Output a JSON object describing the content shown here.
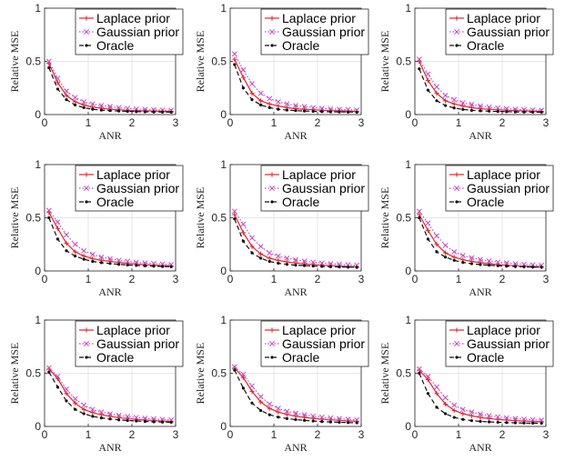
{
  "colors": {
    "laplace": "#e8202a",
    "gaussian": "#c44dc4",
    "oracle": "#111111",
    "grid": "#dedede",
    "axis": "#262626"
  },
  "chart_data": [
    {
      "type": "line",
      "title": "",
      "xlabel": "ANR",
      "ylabel": "Relative MSE",
      "xlim": [
        0,
        3
      ],
      "ylim": [
        0,
        1
      ],
      "grid": true,
      "legend_position": "top-right",
      "xticks": [
        "0",
        "1",
        "2",
        "3"
      ],
      "yticks": [
        "0",
        "0.5",
        "1"
      ],
      "x": [
        0.1,
        0.3,
        0.5,
        0.7,
        0.9,
        1.1,
        1.3,
        1.5,
        1.7,
        1.9,
        2.1,
        2.3,
        2.5,
        2.7,
        2.9
      ],
      "series": [
        {
          "name": "Laplace prior",
          "color_key": "laplace",
          "style": "solid",
          "marker": "+",
          "values": [
            0.48,
            0.3,
            0.18,
            0.12,
            0.09,
            0.07,
            0.06,
            0.05,
            0.045,
            0.04,
            0.037,
            0.035,
            0.033,
            0.031,
            0.03
          ]
        },
        {
          "name": "Gaussian prior",
          "color_key": "gaussian",
          "style": "dotted",
          "marker": "x",
          "values": [
            0.5,
            0.34,
            0.22,
            0.16,
            0.12,
            0.1,
            0.085,
            0.075,
            0.065,
            0.058,
            0.052,
            0.048,
            0.045,
            0.042,
            0.04
          ]
        },
        {
          "name": "Oracle",
          "color_key": "oracle",
          "style": "dashed",
          "marker": "dot",
          "values": [
            0.44,
            0.24,
            0.14,
            0.09,
            0.065,
            0.05,
            0.042,
            0.037,
            0.033,
            0.03,
            0.028,
            0.026,
            0.025,
            0.024,
            0.023
          ]
        }
      ]
    },
    {
      "type": "line",
      "title": "",
      "xlabel": "ANR",
      "ylabel": "Relative MSE",
      "xlim": [
        0,
        3
      ],
      "ylim": [
        0,
        1
      ],
      "grid": true,
      "legend_position": "top-right",
      "xticks": [
        "0",
        "1",
        "2",
        "3"
      ],
      "yticks": [
        "0",
        "0.5",
        "1"
      ],
      "x": [
        0.1,
        0.3,
        0.5,
        0.7,
        0.9,
        1.1,
        1.3,
        1.5,
        1.7,
        1.9,
        2.1,
        2.3,
        2.5,
        2.7,
        2.9
      ],
      "series": [
        {
          "name": "Laplace prior",
          "color_key": "laplace",
          "style": "solid",
          "marker": "+",
          "values": [
            0.52,
            0.35,
            0.2,
            0.13,
            0.1,
            0.08,
            0.065,
            0.055,
            0.05,
            0.045,
            0.04,
            0.037,
            0.035,
            0.033,
            0.03
          ]
        },
        {
          "name": "Gaussian prior",
          "color_key": "gaussian",
          "style": "dotted",
          "marker": "x",
          "values": [
            0.57,
            0.42,
            0.29,
            0.2,
            0.15,
            0.12,
            0.1,
            0.085,
            0.075,
            0.065,
            0.058,
            0.052,
            0.048,
            0.045,
            0.042
          ]
        },
        {
          "name": "Oracle",
          "color_key": "oracle",
          "style": "dashed",
          "marker": "dot",
          "values": [
            0.47,
            0.25,
            0.14,
            0.09,
            0.065,
            0.05,
            0.042,
            0.037,
            0.033,
            0.03,
            0.028,
            0.026,
            0.025,
            0.024,
            0.022
          ]
        }
      ]
    },
    {
      "type": "line",
      "title": "",
      "xlabel": "ANR",
      "ylabel": "Relative MSE",
      "xlim": [
        0,
        3
      ],
      "ylim": [
        0,
        1
      ],
      "grid": true,
      "legend_position": "top-right",
      "xticks": [
        "0",
        "1",
        "2",
        "3"
      ],
      "yticks": [
        "0",
        "0.5",
        "1"
      ],
      "x": [
        0.1,
        0.3,
        0.5,
        0.7,
        0.9,
        1.1,
        1.3,
        1.5,
        1.7,
        1.9,
        2.1,
        2.3,
        2.5,
        2.7,
        2.9
      ],
      "series": [
        {
          "name": "Laplace prior",
          "color_key": "laplace",
          "style": "solid",
          "marker": "+",
          "values": [
            0.5,
            0.32,
            0.2,
            0.13,
            0.1,
            0.08,
            0.065,
            0.055,
            0.05,
            0.045,
            0.04,
            0.037,
            0.035,
            0.032,
            0.03
          ]
        },
        {
          "name": "Gaussian prior",
          "color_key": "gaussian",
          "style": "dotted",
          "marker": "x",
          "values": [
            0.52,
            0.38,
            0.26,
            0.18,
            0.14,
            0.11,
            0.095,
            0.08,
            0.07,
            0.062,
            0.055,
            0.05,
            0.046,
            0.043,
            0.04
          ]
        },
        {
          "name": "Oracle",
          "color_key": "oracle",
          "style": "dashed",
          "marker": "dot",
          "values": [
            0.43,
            0.23,
            0.13,
            0.085,
            0.062,
            0.048,
            0.04,
            0.035,
            0.032,
            0.029,
            0.027,
            0.025,
            0.024,
            0.023,
            0.022
          ]
        }
      ]
    },
    {
      "type": "line",
      "title": "",
      "xlabel": "ANR",
      "ylabel": "Relative MSE",
      "xlim": [
        0,
        3
      ],
      "ylim": [
        0,
        1
      ],
      "grid": true,
      "legend_position": "top-right",
      "xticks": [
        "0",
        "1",
        "2",
        "3"
      ],
      "yticks": [
        "0",
        "0.5",
        "1"
      ],
      "x": [
        0.1,
        0.3,
        0.5,
        0.7,
        0.9,
        1.1,
        1.3,
        1.5,
        1.7,
        1.9,
        2.1,
        2.3,
        2.5,
        2.7,
        2.9
      ],
      "series": [
        {
          "name": "Laplace prior",
          "color_key": "laplace",
          "style": "solid",
          "marker": "+",
          "values": [
            0.55,
            0.4,
            0.26,
            0.18,
            0.14,
            0.115,
            0.1,
            0.09,
            0.08,
            0.072,
            0.065,
            0.06,
            0.055,
            0.05,
            0.047
          ]
        },
        {
          "name": "Gaussian prior",
          "color_key": "gaussian",
          "style": "dotted",
          "marker": "x",
          "values": [
            0.57,
            0.46,
            0.34,
            0.25,
            0.19,
            0.155,
            0.13,
            0.115,
            0.1,
            0.09,
            0.082,
            0.075,
            0.07,
            0.065,
            0.06
          ]
        },
        {
          "name": "Oracle",
          "color_key": "oracle",
          "style": "dashed",
          "marker": "dot",
          "values": [
            0.5,
            0.3,
            0.19,
            0.14,
            0.11,
            0.09,
            0.078,
            0.07,
            0.062,
            0.056,
            0.052,
            0.048,
            0.045,
            0.042,
            0.04
          ]
        }
      ]
    },
    {
      "type": "line",
      "title": "",
      "xlabel": "ANR",
      "ylabel": "Relative MSE",
      "xlim": [
        0,
        3
      ],
      "ylim": [
        0,
        1
      ],
      "grid": true,
      "legend_position": "top-right",
      "xticks": [
        "0",
        "1",
        "2",
        "3"
      ],
      "yticks": [
        "0",
        "0.5",
        "1"
      ],
      "x": [
        0.1,
        0.3,
        0.5,
        0.7,
        0.9,
        1.1,
        1.3,
        1.5,
        1.7,
        1.9,
        2.1,
        2.3,
        2.5,
        2.7,
        2.9
      ],
      "series": [
        {
          "name": "Laplace prior",
          "color_key": "laplace",
          "style": "solid",
          "marker": "+",
          "values": [
            0.53,
            0.36,
            0.23,
            0.16,
            0.12,
            0.1,
            0.085,
            0.075,
            0.066,
            0.06,
            0.054,
            0.05,
            0.046,
            0.043,
            0.04
          ]
        },
        {
          "name": "Gaussian prior",
          "color_key": "gaussian",
          "style": "dotted",
          "marker": "x",
          "values": [
            0.56,
            0.44,
            0.31,
            0.23,
            0.17,
            0.14,
            0.12,
            0.105,
            0.092,
            0.082,
            0.074,
            0.068,
            0.062,
            0.058,
            0.054
          ]
        },
        {
          "name": "Oracle",
          "color_key": "oracle",
          "style": "dashed",
          "marker": "dot",
          "values": [
            0.49,
            0.28,
            0.17,
            0.12,
            0.09,
            0.073,
            0.062,
            0.055,
            0.05,
            0.046,
            0.043,
            0.04,
            0.038,
            0.036,
            0.034
          ]
        }
      ]
    },
    {
      "type": "line",
      "title": "",
      "xlabel": "ANR",
      "ylabel": "Relative MSE",
      "xlim": [
        0,
        3
      ],
      "ylim": [
        0,
        1
      ],
      "grid": true,
      "legend_position": "top-right",
      "xticks": [
        "0",
        "1",
        "2",
        "3"
      ],
      "yticks": [
        "0",
        "0.5",
        "1"
      ],
      "x": [
        0.1,
        0.3,
        0.5,
        0.7,
        0.9,
        1.1,
        1.3,
        1.5,
        1.7,
        1.9,
        2.1,
        2.3,
        2.5,
        2.7,
        2.9
      ],
      "series": [
        {
          "name": "Laplace prior",
          "color_key": "laplace",
          "style": "solid",
          "marker": "+",
          "values": [
            0.53,
            0.38,
            0.25,
            0.17,
            0.13,
            0.105,
            0.09,
            0.078,
            0.068,
            0.06,
            0.054,
            0.049,
            0.045,
            0.042,
            0.039
          ]
        },
        {
          "name": "Gaussian prior",
          "color_key": "gaussian",
          "style": "dotted",
          "marker": "x",
          "values": [
            0.56,
            0.45,
            0.33,
            0.24,
            0.18,
            0.145,
            0.123,
            0.107,
            0.094,
            0.083,
            0.075,
            0.068,
            0.062,
            0.057,
            0.053
          ]
        },
        {
          "name": "Oracle",
          "color_key": "oracle",
          "style": "dashed",
          "marker": "dot",
          "values": [
            0.5,
            0.3,
            0.18,
            0.13,
            0.1,
            0.08,
            0.068,
            0.06,
            0.054,
            0.049,
            0.045,
            0.042,
            0.039,
            0.037,
            0.035
          ]
        }
      ]
    },
    {
      "type": "line",
      "title": "",
      "xlabel": "ANR",
      "ylabel": "Relative MSE",
      "xlim": [
        0,
        3
      ],
      "ylim": [
        0,
        1
      ],
      "grid": true,
      "legend_position": "top-right",
      "xticks": [
        "0",
        "1",
        "2",
        "3"
      ],
      "yticks": [
        "0",
        "0.5",
        "1"
      ],
      "x": [
        0.1,
        0.3,
        0.5,
        0.7,
        0.9,
        1.1,
        1.3,
        1.5,
        1.7,
        1.9,
        2.1,
        2.3,
        2.5,
        2.7,
        2.9
      ],
      "series": [
        {
          "name": "Laplace prior",
          "color_key": "laplace",
          "style": "solid",
          "marker": "+",
          "values": [
            0.54,
            0.45,
            0.31,
            0.22,
            0.16,
            0.13,
            0.11,
            0.095,
            0.083,
            0.074,
            0.066,
            0.06,
            0.055,
            0.051,
            0.047
          ]
        },
        {
          "name": "Gaussian prior",
          "color_key": "gaussian",
          "style": "dotted",
          "marker": "x",
          "values": [
            0.55,
            0.47,
            0.35,
            0.26,
            0.2,
            0.16,
            0.135,
            0.118,
            0.104,
            0.093,
            0.084,
            0.077,
            0.071,
            0.066,
            0.061
          ]
        },
        {
          "name": "Oracle",
          "color_key": "oracle",
          "style": "dashed",
          "marker": "dot",
          "values": [
            0.51,
            0.37,
            0.24,
            0.16,
            0.12,
            0.095,
            0.08,
            0.07,
            0.062,
            0.056,
            0.051,
            0.047,
            0.044,
            0.041,
            0.039
          ]
        }
      ]
    },
    {
      "type": "line",
      "title": "",
      "xlabel": "ANR",
      "ylabel": "Relative MSE",
      "xlim": [
        0,
        3
      ],
      "ylim": [
        0,
        1
      ],
      "grid": true,
      "legend_position": "top-right",
      "xticks": [
        "0",
        "1",
        "2",
        "3"
      ],
      "yticks": [
        "0",
        "0.5",
        "1"
      ],
      "x": [
        0.1,
        0.3,
        0.5,
        0.7,
        0.9,
        1.1,
        1.3,
        1.5,
        1.7,
        1.9,
        2.1,
        2.3,
        2.5,
        2.7,
        2.9
      ],
      "series": [
        {
          "name": "Laplace prior",
          "color_key": "laplace",
          "style": "solid",
          "marker": "+",
          "values": [
            0.55,
            0.46,
            0.33,
            0.23,
            0.17,
            0.135,
            0.113,
            0.097,
            0.085,
            0.076,
            0.068,
            0.062,
            0.057,
            0.052,
            0.048
          ]
        },
        {
          "name": "Gaussian prior",
          "color_key": "gaussian",
          "style": "dotted",
          "marker": "x",
          "values": [
            0.56,
            0.49,
            0.38,
            0.28,
            0.21,
            0.17,
            0.143,
            0.124,
            0.109,
            0.097,
            0.087,
            0.079,
            0.073,
            0.067,
            0.062
          ]
        },
        {
          "name": "Oracle",
          "color_key": "oracle",
          "style": "dashed",
          "marker": "dot",
          "values": [
            0.53,
            0.36,
            0.22,
            0.15,
            0.11,
            0.088,
            0.074,
            0.064,
            0.057,
            0.051,
            0.046,
            0.042,
            0.039,
            0.036,
            0.034
          ]
        }
      ]
    },
    {
      "type": "line",
      "title": "",
      "xlabel": "ANR",
      "ylabel": "Relative MSE",
      "xlim": [
        0,
        3
      ],
      "ylim": [
        0,
        1
      ],
      "grid": true,
      "legend_position": "top-right",
      "xticks": [
        "0",
        "1",
        "2",
        "3"
      ],
      "yticks": [
        "0",
        "0.5",
        "1"
      ],
      "x": [
        0.1,
        0.3,
        0.5,
        0.7,
        0.9,
        1.1,
        1.3,
        1.5,
        1.7,
        1.9,
        2.1,
        2.3,
        2.5,
        2.7,
        2.9
      ],
      "series": [
        {
          "name": "Laplace prior",
          "color_key": "laplace",
          "style": "solid",
          "marker": "+",
          "values": [
            0.53,
            0.44,
            0.31,
            0.21,
            0.15,
            0.12,
            0.1,
            0.085,
            0.074,
            0.066,
            0.06,
            0.055,
            0.051,
            0.047,
            0.044
          ]
        },
        {
          "name": "Gaussian prior",
          "color_key": "gaussian",
          "style": "dotted",
          "marker": "x",
          "values": [
            0.54,
            0.47,
            0.37,
            0.27,
            0.2,
            0.16,
            0.135,
            0.116,
            0.101,
            0.09,
            0.081,
            0.074,
            0.068,
            0.063,
            0.059
          ]
        },
        {
          "name": "Oracle",
          "color_key": "oracle",
          "style": "dashed",
          "marker": "dot",
          "values": [
            0.5,
            0.31,
            0.18,
            0.12,
            0.085,
            0.066,
            0.055,
            0.048,
            0.043,
            0.039,
            0.036,
            0.034,
            0.032,
            0.031,
            0.03
          ]
        }
      ]
    }
  ]
}
